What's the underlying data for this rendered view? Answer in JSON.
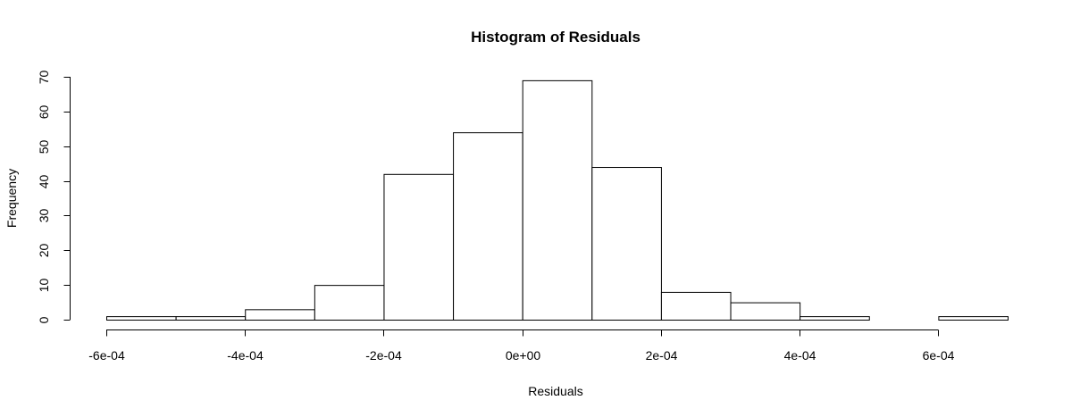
{
  "chart_data": {
    "type": "bar",
    "title": "Histogram of Residuals",
    "xlabel": "Residuals",
    "ylabel": "Frequency",
    "bin_edges": [
      -0.0006,
      -0.0005,
      -0.0004,
      -0.0003,
      -0.0002,
      -0.0001,
      0.0,
      0.0001,
      0.0002,
      0.0003,
      0.0004,
      0.0005,
      0.0006,
      0.0007
    ],
    "values": [
      1,
      1,
      3,
      10,
      42,
      54,
      69,
      44,
      8,
      5,
      1,
      0,
      1
    ],
    "xlim": [
      -0.0006,
      0.0007
    ],
    "ylim": [
      0,
      70
    ],
    "x_ticks": [
      {
        "value": -0.0006,
        "label": "-6e-04"
      },
      {
        "value": -0.0004,
        "label": "-4e-04"
      },
      {
        "value": -0.0002,
        "label": "-2e-04"
      },
      {
        "value": 0.0,
        "label": "0e+00"
      },
      {
        "value": 0.0002,
        "label": "2e-04"
      },
      {
        "value": 0.0004,
        "label": "4e-04"
      },
      {
        "value": 0.0006,
        "label": "6e-04"
      }
    ],
    "y_ticks": [
      {
        "value": 0,
        "label": "0"
      },
      {
        "value": 10,
        "label": "10"
      },
      {
        "value": 20,
        "label": "20"
      },
      {
        "value": 30,
        "label": "30"
      },
      {
        "value": 40,
        "label": "40"
      },
      {
        "value": 50,
        "label": "50"
      },
      {
        "value": 60,
        "label": "60"
      },
      {
        "value": 70,
        "label": "70"
      }
    ],
    "grid": false,
    "bar_fill": "#ffffff",
    "bar_stroke": "#000000"
  }
}
